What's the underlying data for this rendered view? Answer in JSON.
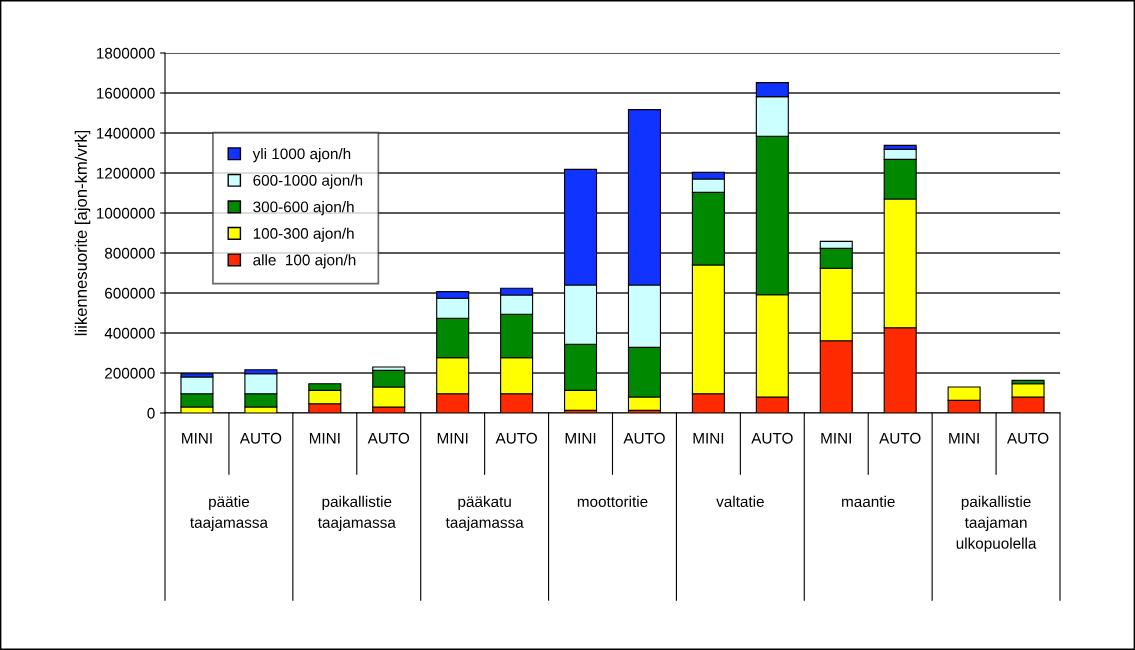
{
  "chart_data": {
    "type": "bar",
    "stacked": true,
    "ylabel": "liikennesuorite [ajon-km/vrk]",
    "categories": [
      "MINI",
      "AUTO",
      "MINI",
      "AUTO",
      "MINI",
      "AUTO",
      "MINI",
      "AUTO",
      "MINI",
      "AUTO",
      "MINI",
      "AUTO",
      "MINI",
      "AUTO"
    ],
    "annotations": [
      "päätie\ntaajamassa",
      "paikallistie\ntaajamassa",
      "pääkatu\ntaajamassa",
      "moottoritie",
      "valtatie",
      "maantie",
      "paikallistie\ntaajaman\nulkopuolella"
    ],
    "series": [
      {
        "name": "alle  100 ajon/h",
        "color": "#ff2a00",
        "values": [
          0,
          0,
          46000,
          30000,
          96000,
          96000,
          13000,
          13000,
          96000,
          80000,
          361000,
          426000,
          63000,
          80000
        ]
      },
      {
        "name": "100-300 ajon/h",
        "color": "#ffff00",
        "values": [
          30000,
          30000,
          67000,
          100000,
          180000,
          180000,
          100000,
          67000,
          644000,
          511000,
          363000,
          644000,
          67000,
          66000
        ]
      },
      {
        "name": "300-600 ajon/h",
        "color": "#008800",
        "values": [
          66000,
          66000,
          33000,
          83000,
          198000,
          218000,
          231000,
          248000,
          363000,
          793000,
          99000,
          198000,
          0,
          17000
        ]
      },
      {
        "name": "600-1000 ajon/h",
        "color": "#ccffff",
        "values": [
          84000,
          100000,
          0,
          17000,
          100000,
          96000,
          296000,
          312000,
          67000,
          198000,
          35000,
          50000,
          0,
          0
        ]
      },
      {
        "name": "yli 1000 ajon/h",
        "color": "#1133ff",
        "values": [
          16000,
          20000,
          0,
          0,
          33000,
          34000,
          578000,
          877000,
          33000,
          70000,
          0,
          20000,
          0,
          0
        ]
      }
    ],
    "ylim": [
      0,
      1800000
    ],
    "yticks": [
      0,
      200000,
      400000,
      600000,
      800000,
      1000000,
      1200000,
      1400000,
      1600000,
      1800000
    ],
    "grid": "y",
    "legend": "top left"
  }
}
